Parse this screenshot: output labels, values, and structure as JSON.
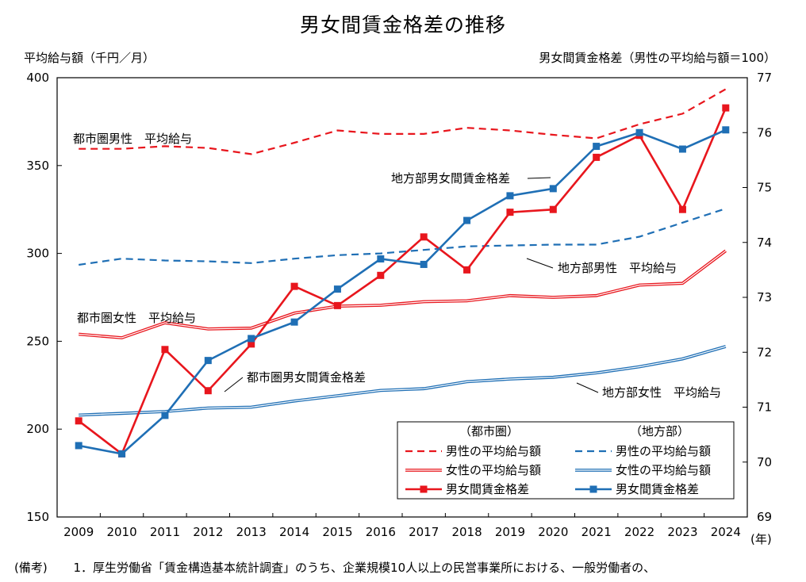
{
  "chart_data": {
    "type": "line",
    "title": "男女間賃金格差の推移",
    "ylabel_left": "平均給与額（千円／月）",
    "ylabel_right": "男女間賃金格差（男性の平均給与額＝100）",
    "x_unit": "(年)",
    "x": [
      2009,
      2010,
      2011,
      2012,
      2013,
      2014,
      2015,
      2016,
      2017,
      2018,
      2019,
      2020,
      2021,
      2022,
      2023,
      2024
    ],
    "ylim_left": [
      150,
      400
    ],
    "yticks_left": [
      150,
      200,
      250,
      300,
      350,
      400
    ],
    "ylim_right": [
      69,
      77
    ],
    "yticks_right": [
      69,
      70,
      71,
      72,
      73,
      74,
      75,
      76,
      77
    ],
    "grid": false,
    "series": [
      {
        "key": "urban_male",
        "axis": "left",
        "color": "#e8161d",
        "style": "dashed",
        "values": [
          359.5,
          359.5,
          361,
          360,
          356.5,
          363,
          370,
          368,
          368,
          371.5,
          370,
          367.5,
          365.5,
          373.5,
          379.5,
          393.5
        ]
      },
      {
        "key": "rural_male",
        "axis": "left",
        "color": "#1f6fb5",
        "style": "dashed",
        "values": [
          293.5,
          297,
          296,
          295.5,
          294.5,
          297,
          299,
          300,
          302,
          304,
          304.5,
          305,
          305,
          309.5,
          317.5,
          325.5
        ]
      },
      {
        "key": "urban_female",
        "axis": "left",
        "color": "#e8161d",
        "style": "double",
        "values": [
          254,
          252,
          260.5,
          257,
          257.5,
          266,
          270,
          270.5,
          272.5,
          273,
          276,
          275,
          276,
          282,
          283,
          301.5
        ]
      },
      {
        "key": "rural_female",
        "axis": "left",
        "color": "#1f6fb5",
        "style": "double",
        "values": [
          208,
          209,
          210,
          212,
          212.5,
          216,
          219,
          222,
          223,
          227,
          228.5,
          229.5,
          232,
          235.5,
          240,
          247
        ]
      },
      {
        "key": "urban_gap",
        "axis": "right",
        "color": "#e8161d",
        "style": "solid-marker",
        "values": [
          70.75,
          70.15,
          72.05,
          71.3,
          72.15,
          73.2,
          72.85,
          73.4,
          74.1,
          73.5,
          74.55,
          74.6,
          75.55,
          75.95,
          74.6,
          76.45
        ]
      },
      {
        "key": "rural_gap",
        "axis": "right",
        "color": "#1f6fb5",
        "style": "solid-marker",
        "values": [
          70.3,
          70.15,
          70.85,
          71.85,
          72.25,
          72.55,
          73.15,
          73.7,
          73.6,
          74.4,
          74.85,
          74.98,
          75.75,
          76.0,
          75.7,
          76.05
        ]
      }
    ],
    "annotations": [
      {
        "key": "urban_male",
        "text": "都市圏男性　平均給与"
      },
      {
        "key": "rural_gap",
        "text": "地方部男女間賃金格差"
      },
      {
        "key": "rural_male",
        "text": "地方部男性　平均給与"
      },
      {
        "key": "urban_female",
        "text": "都市圏女性　平均給与"
      },
      {
        "key": "urban_gap",
        "text": "都市圏男女間賃金格差"
      },
      {
        "key": "rural_female",
        "text": "地方部女性　平均給与"
      }
    ],
    "legend": {
      "position": "bottom-right",
      "group_urban": "（都市圏）",
      "group_rural": "（地方部）",
      "items": [
        {
          "key": "urban_male",
          "label": "男性の平均給与額"
        },
        {
          "key": "rural_male",
          "label": "男性の平均給与額"
        },
        {
          "key": "urban_female",
          "label": "女性の平均給与額"
        },
        {
          "key": "rural_female",
          "label": "女性の平均給与額"
        },
        {
          "key": "urban_gap",
          "label": "男女間賃金格差"
        },
        {
          "key": "rural_gap",
          "label": "男女間賃金格差"
        }
      ]
    }
  },
  "footnote": {
    "label": "(備考)",
    "text": "1．厚生労働省「賃金構造基本統計調査」のうち、企業規模10人以上の民営事業所における、一般労働者の、"
  }
}
